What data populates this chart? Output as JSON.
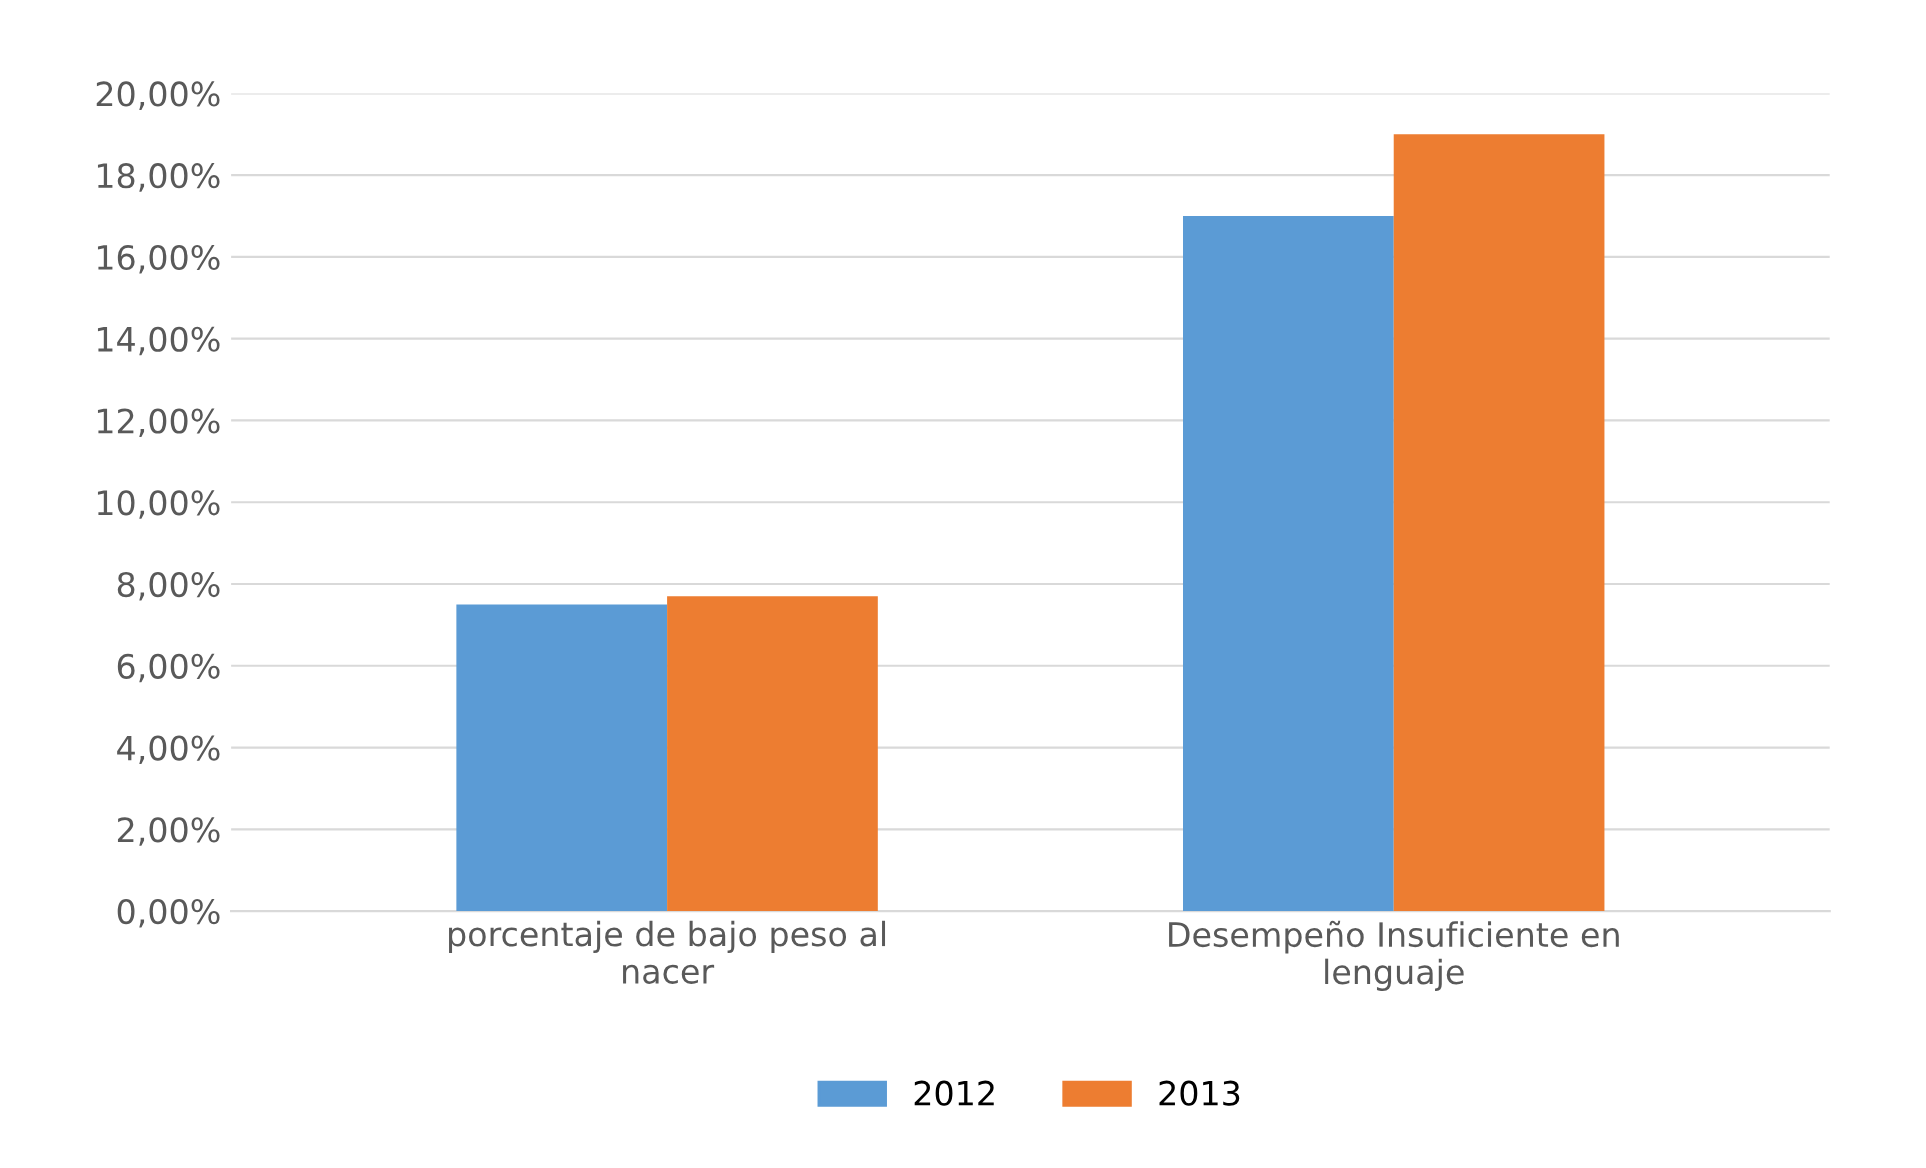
{
  "chart_data": {
    "type": "bar",
    "categories": [
      "porcentaje de bajo peso al nacer",
      "Desempeño Insuficiente en lenguaje"
    ],
    "series": [
      {
        "name": "2012",
        "color": "#5b9bd5",
        "values": [
          7.5,
          17
        ]
      },
      {
        "name": "2013",
        "color": "#ed7d31",
        "values": [
          7.7,
          19
        ]
      }
    ],
    "ylim": [
      0,
      20
    ],
    "yticks": [
      {
        "value": 0,
        "label": "0,00%"
      },
      {
        "value": 2,
        "label": "2,00%"
      },
      {
        "value": 4,
        "label": "4,00%"
      },
      {
        "value": 6,
        "label": "6,00%"
      },
      {
        "value": 8,
        "label": "8,00%"
      },
      {
        "value": 10,
        "label": "10,00%"
      },
      {
        "value": 12,
        "label": "12,00%"
      },
      {
        "value": 14,
        "label": "14,00%"
      },
      {
        "value": 16,
        "label": "16,00%"
      },
      {
        "value": 18,
        "label": "18,00%"
      },
      {
        "value": 20,
        "label": "20,00%"
      }
    ],
    "grid": "y",
    "legend": "bottom"
  }
}
